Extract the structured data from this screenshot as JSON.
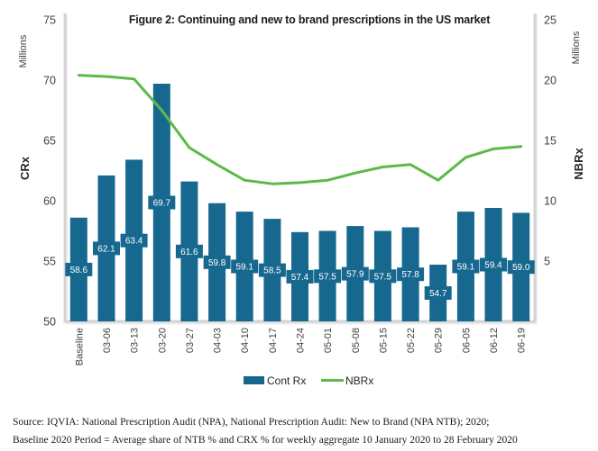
{
  "title": "Figure 2: Continuing and new to brand prescriptions in the US market",
  "chart_data": {
    "type": "bar+line combo",
    "title": "Figure 2: Continuing and new to brand prescriptions in the US market",
    "categories": [
      "Baseline",
      "03-06",
      "03-13",
      "03-20",
      "03-27",
      "04-03",
      "04-10",
      "04-17",
      "04-24",
      "05-01",
      "05-08",
      "05-15",
      "05-22",
      "05-29",
      "06-05",
      "06-12",
      "06-19"
    ],
    "series": [
      {
        "name": "Cont Rx",
        "type": "bar",
        "axis": "left",
        "color": "#17688f",
        "values": [
          58.6,
          62.1,
          63.4,
          69.7,
          61.6,
          59.8,
          59.1,
          58.5,
          57.4,
          57.5,
          57.9,
          57.5,
          57.8,
          54.7,
          59.1,
          59.4,
          59.0
        ],
        "data_labels": [
          "58.6",
          "62.1",
          "63.4",
          "69.7",
          "61.6",
          "59.8",
          "59.1",
          "58.5",
          "57.4",
          "57.5",
          "57.9",
          "57.5",
          "57.8",
          "54.7",
          "59.1",
          "59.4",
          "59.0"
        ]
      },
      {
        "name": "NBRx",
        "type": "line",
        "axis": "right",
        "color": "#5cba47",
        "values": [
          20.4,
          20.3,
          20.1,
          17.5,
          14.4,
          13.0,
          11.7,
          11.4,
          11.5,
          11.7,
          12.3,
          12.8,
          13.0,
          11.7,
          13.6,
          14.3,
          14.5
        ]
      }
    ],
    "left_axis": {
      "title": "CRx",
      "units": "Millions",
      "min": 50,
      "max": 75,
      "step": 5,
      "ticks": [
        75,
        70,
        65,
        60,
        55,
        50
      ]
    },
    "right_axis": {
      "title": "NBRx",
      "units": "Millions",
      "min": 0,
      "max": 25,
      "step": 5,
      "ticks": [
        25,
        20,
        15,
        10,
        5
      ]
    },
    "legend": {
      "position": "bottom",
      "items": [
        "Cont Rx",
        "NBRx"
      ]
    },
    "grid": false,
    "bar_labels_visible": true
  },
  "footer": {
    "line1": "Source: IQVIA: National Prescription Audit (NPA), National Prescription Audit: New to Brand (NPA NTB); 2020;",
    "line2": "Baseline 2020 Period = Average share of NTB % and CRX % for weekly aggregate 10 January 2020 to 28 February 2020"
  },
  "colors": {
    "bar": "#17688f",
    "line": "#5cba47",
    "axis_line": "#d4d4d4",
    "tick_text": "#404040",
    "title_text": "#1d1d1f",
    "bar_label_text": "#ffffff",
    "background": "#ffffff"
  }
}
